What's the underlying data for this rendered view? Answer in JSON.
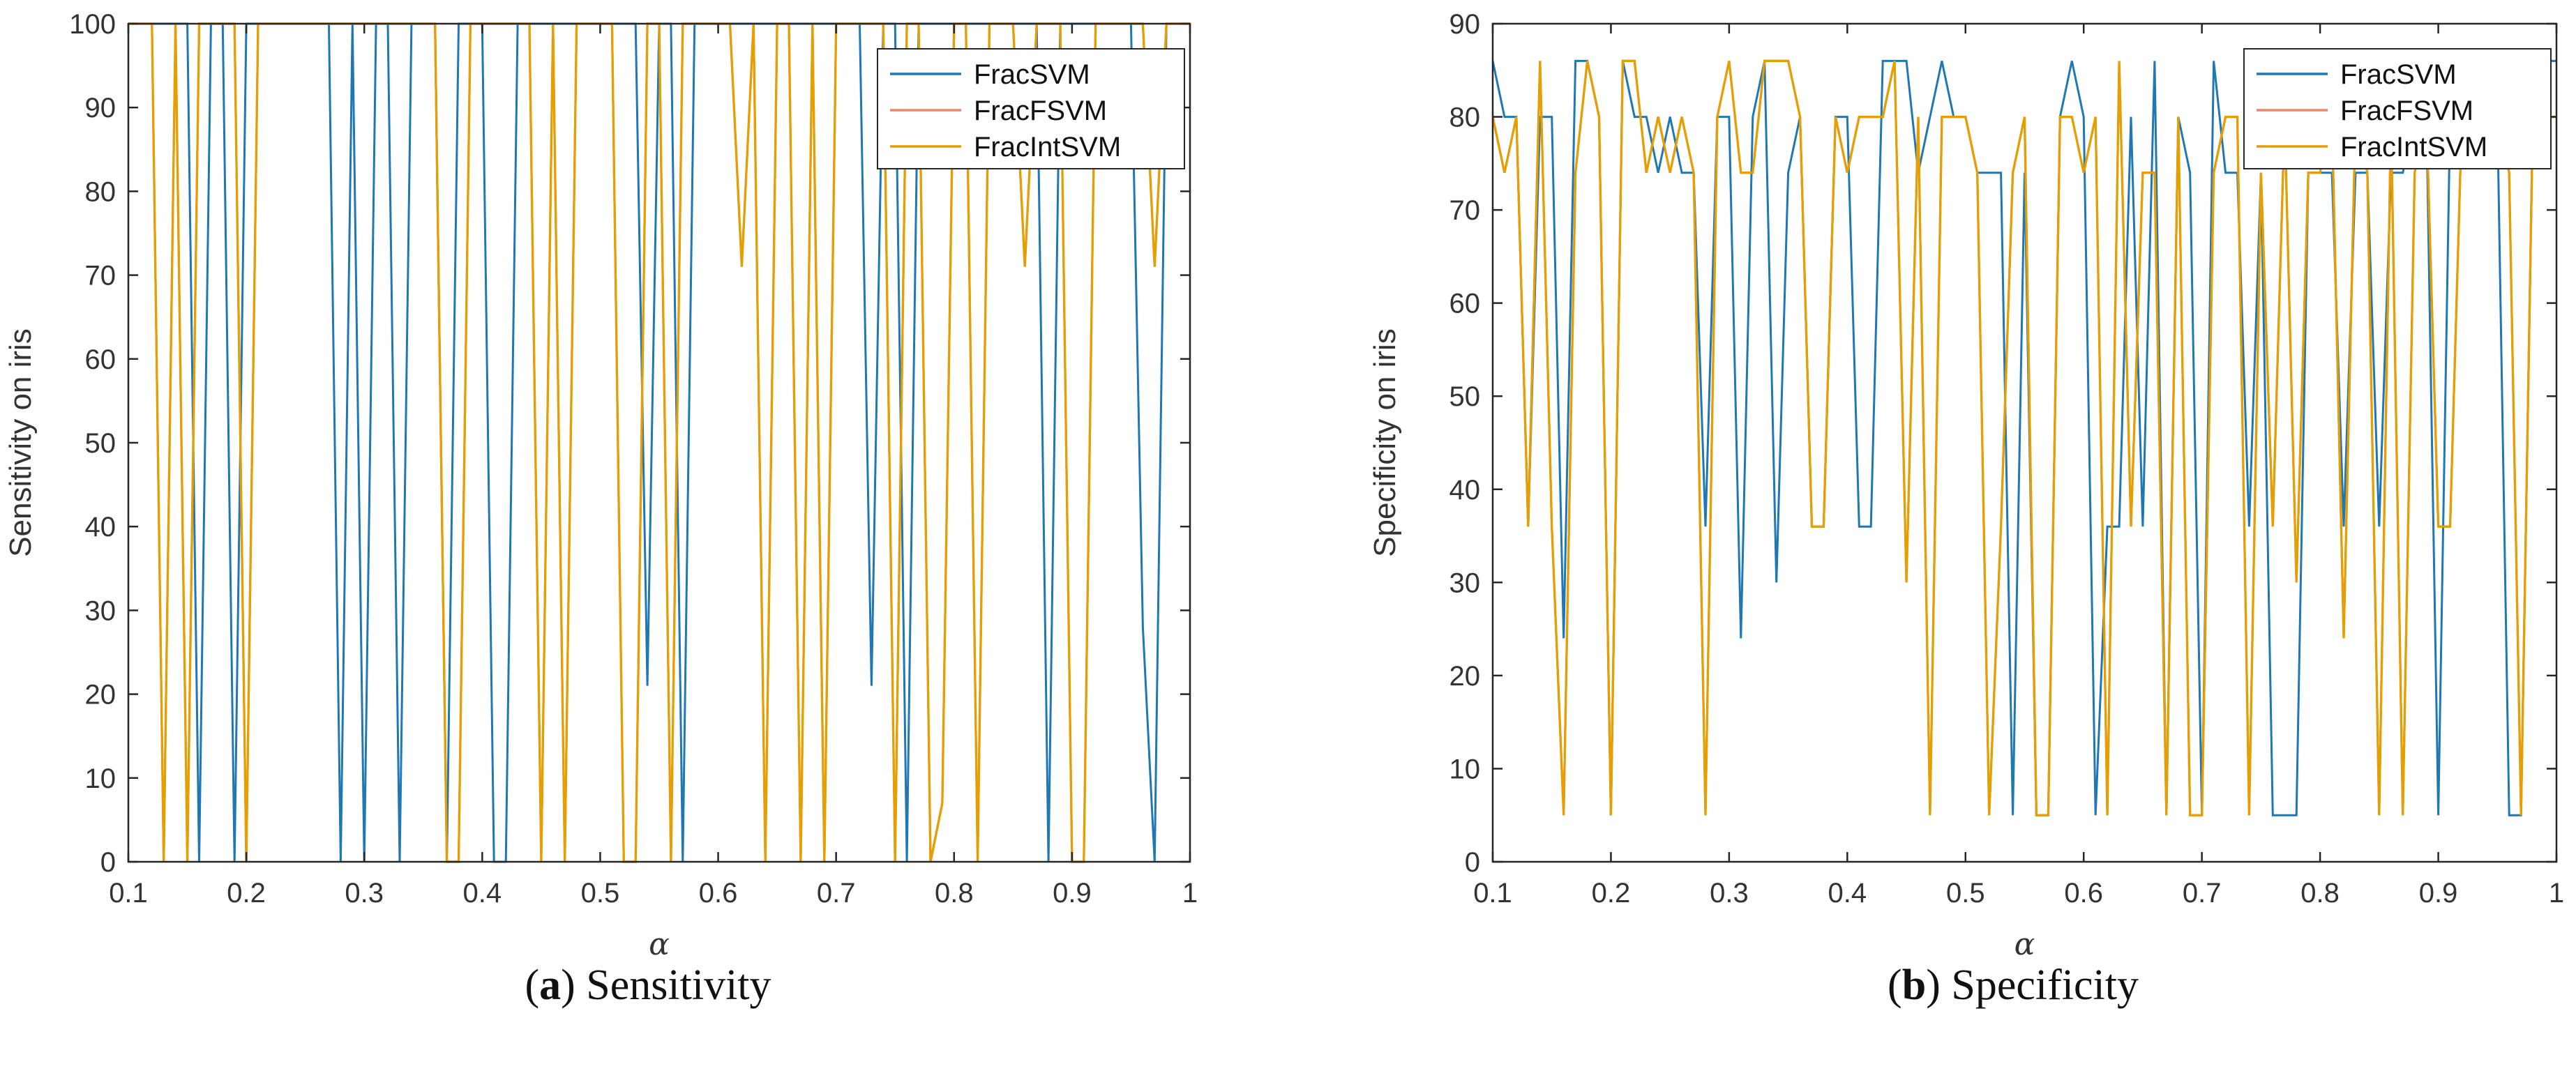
{
  "colors": {
    "FracSVM": "#1f77b4",
    "FracFSVM": "#e8856a",
    "FracIntSVM": "#e69f00",
    "axis": "#262626",
    "tick_text": "#333333"
  },
  "chart_data": [
    {
      "type": "line",
      "panel": "a",
      "caption_tag": "a",
      "caption_text": "Sensitivity",
      "xlabel": "α",
      "ylabel": "Sensitivity on iris",
      "title": "",
      "xlim": [
        0.1,
        1
      ],
      "ylim": [
        0,
        100
      ],
      "xticks": [
        0.1,
        0.2,
        0.3,
        0.4,
        0.5,
        0.6,
        0.7,
        0.8,
        0.9,
        1
      ],
      "xtick_labels": [
        "0.1",
        "0.2",
        "0.3",
        "0.4",
        "0.5",
        "0.6",
        "0.7",
        "0.8",
        "0.9",
        "1"
      ],
      "yticks": [
        0,
        10,
        20,
        30,
        40,
        50,
        60,
        70,
        80,
        90,
        100
      ],
      "ytick_labels": [
        "0",
        "10",
        "20",
        "30",
        "40",
        "50",
        "60",
        "70",
        "80",
        "90",
        "100"
      ],
      "legend_position": "top-right",
      "legend": [
        "FracSVM",
        "FracFSVM",
        "FracIntSVM"
      ],
      "x": [
        0.1,
        0.11,
        0.12,
        0.13,
        0.14,
        0.15,
        0.16,
        0.17,
        0.18,
        0.19,
        0.2,
        0.21,
        0.22,
        0.23,
        0.24,
        0.25,
        0.26,
        0.27,
        0.28,
        0.29,
        0.3,
        0.31,
        0.32,
        0.33,
        0.34,
        0.35,
        0.36,
        0.37,
        0.38,
        0.39,
        0.4,
        0.41,
        0.42,
        0.43,
        0.44,
        0.45,
        0.46,
        0.47,
        0.48,
        0.49,
        0.5,
        0.51,
        0.52,
        0.53,
        0.54,
        0.55,
        0.56,
        0.57,
        0.58,
        0.59,
        0.6,
        0.61,
        0.62,
        0.63,
        0.64,
        0.65,
        0.66,
        0.67,
        0.68,
        0.69,
        0.7,
        0.71,
        0.72,
        0.73,
        0.74,
        0.75,
        0.76,
        0.77,
        0.78,
        0.79,
        0.8,
        0.81,
        0.82,
        0.83,
        0.84,
        0.85,
        0.86,
        0.87,
        0.88,
        0.89,
        0.9,
        0.91,
        0.92,
        0.93,
        0.94,
        0.95,
        0.96,
        0.97,
        0.98,
        0.99,
        1.0
      ],
      "series": [
        {
          "name": "FracSVM",
          "values": [
            100,
            100,
            100,
            100,
            100,
            100,
            0,
            100,
            100,
            0,
            100,
            100,
            100,
            100,
            100,
            100,
            100,
            100,
            0,
            100,
            0,
            100,
            100,
            0,
            100,
            100,
            100,
            0,
            100,
            100,
            100,
            0,
            0,
            100,
            100,
            100,
            100,
            100,
            100,
            100,
            100,
            100,
            100,
            100,
            21,
            100,
            100,
            0,
            100,
            100,
            100,
            100,
            100,
            100,
            100,
            100,
            100,
            100,
            100,
            100,
            100,
            100,
            100,
            21,
            100,
            100,
            0,
            100,
            100,
            100,
            100,
            100,
            100,
            100,
            100,
            100,
            100,
            100,
            0,
            100,
            100,
            100,
            100,
            100,
            100,
            100,
            28,
            0,
            100,
            100,
            100
          ]
        },
        {
          "name": "FracFSVM",
          "values": [
            100,
            100,
            100,
            0,
            100,
            0,
            100,
            100,
            100,
            100,
            0,
            100,
            100,
            100,
            100,
            100,
            100,
            100,
            100,
            100,
            100,
            100,
            100,
            100,
            100,
            100,
            100,
            0,
            0,
            100,
            100,
            100,
            100,
            100,
            100,
            0,
            100,
            0,
            100,
            100,
            100,
            100,
            0,
            0,
            100,
            100,
            0,
            100,
            100,
            100,
            100,
            100,
            71,
            100,
            0,
            100,
            100,
            0,
            100,
            0,
            100,
            100,
            100,
            100,
            100,
            0,
            100,
            100,
            0,
            7,
            100,
            100,
            0,
            100,
            100,
            100,
            71,
            100,
            100,
            100,
            0,
            0,
            100,
            100,
            100,
            100,
            100,
            71,
            100,
            100,
            100
          ]
        },
        {
          "name": "FracIntSVM",
          "values": [
            100,
            100,
            100,
            0,
            100,
            0,
            100,
            100,
            100,
            100,
            0,
            100,
            100,
            100,
            100,
            100,
            100,
            100,
            100,
            100,
            100,
            100,
            100,
            100,
            100,
            100,
            100,
            0,
            0,
            100,
            100,
            100,
            100,
            100,
            100,
            0,
            100,
            0,
            100,
            100,
            100,
            100,
            0,
            0,
            100,
            100,
            0,
            100,
            100,
            100,
            100,
            100,
            71,
            100,
            0,
            100,
            100,
            0,
            100,
            0,
            100,
            100,
            100,
            100,
            100,
            0,
            100,
            100,
            0,
            7,
            100,
            100,
            0,
            100,
            100,
            100,
            71,
            100,
            100,
            100,
            0,
            0,
            100,
            100,
            100,
            100,
            100,
            71,
            100,
            100,
            100
          ]
        }
      ]
    },
    {
      "type": "line",
      "panel": "b",
      "caption_tag": "b",
      "caption_text": "Specificity",
      "xlabel": "α",
      "ylabel": "Specificity on iris",
      "title": "",
      "xlim": [
        0.1,
        1
      ],
      "ylim": [
        0,
        90
      ],
      "xticks": [
        0.1,
        0.2,
        0.3,
        0.4,
        0.5,
        0.6,
        0.7,
        0.8,
        0.9,
        1
      ],
      "xtick_labels": [
        "0.1",
        "0.2",
        "0.3",
        "0.4",
        "0.5",
        "0.6",
        "0.7",
        "0.8",
        "0.9",
        "1"
      ],
      "yticks": [
        0,
        10,
        20,
        30,
        40,
        50,
        60,
        70,
        80,
        90
      ],
      "ytick_labels": [
        "0",
        "10",
        "20",
        "30",
        "40",
        "50",
        "60",
        "70",
        "80",
        "90"
      ],
      "legend_position": "top-right",
      "legend": [
        "FracSVM",
        "FracFSVM",
        "FracIntSVM"
      ],
      "x": [
        0.1,
        0.11,
        0.12,
        0.13,
        0.14,
        0.15,
        0.16,
        0.17,
        0.18,
        0.19,
        0.2,
        0.21,
        0.22,
        0.23,
        0.24,
        0.25,
        0.26,
        0.27,
        0.28,
        0.29,
        0.3,
        0.31,
        0.32,
        0.33,
        0.34,
        0.35,
        0.36,
        0.37,
        0.38,
        0.39,
        0.4,
        0.41,
        0.42,
        0.43,
        0.44,
        0.45,
        0.46,
        0.47,
        0.48,
        0.49,
        0.5,
        0.51,
        0.52,
        0.53,
        0.54,
        0.55,
        0.56,
        0.57,
        0.58,
        0.59,
        0.6,
        0.61,
        0.62,
        0.63,
        0.64,
        0.65,
        0.66,
        0.67,
        0.68,
        0.69,
        0.7,
        0.71,
        0.72,
        0.73,
        0.74,
        0.75,
        0.76,
        0.77,
        0.78,
        0.79,
        0.8,
        0.81,
        0.82,
        0.83,
        0.84,
        0.85,
        0.86,
        0.87,
        0.88,
        0.89,
        0.9,
        0.91,
        0.92,
        0.93,
        0.94,
        0.95,
        0.96,
        0.97,
        0.98,
        0.99,
        1.0
      ],
      "series": [
        {
          "name": "FracSVM",
          "values": [
            86,
            80,
            80,
            36,
            80,
            80,
            24,
            86,
            86,
            80,
            5,
            86,
            80,
            80,
            74,
            80,
            74,
            74,
            36,
            80,
            80,
            24,
            80,
            86,
            30,
            74,
            80,
            36,
            36,
            80,
            80,
            36,
            36,
            86,
            86,
            86,
            74,
            80,
            86,
            80,
            80,
            74,
            74,
            74,
            5,
            74,
            5,
            5,
            80,
            86,
            80,
            5,
            36,
            36,
            80,
            36,
            86,
            5,
            80,
            74,
            5,
            86,
            74,
            74,
            36,
            74,
            5,
            5,
            5,
            74,
            74,
            74,
            36,
            74,
            74,
            36,
            74,
            74,
            80,
            80,
            5,
            80,
            80,
            80,
            80,
            80,
            5,
            5,
            80,
            86,
            86
          ]
        },
        {
          "name": "FracFSVM",
          "values": [
            80,
            74,
            80,
            36,
            86,
            36,
            5,
            74,
            86,
            80,
            5,
            86,
            86,
            74,
            80,
            74,
            80,
            74,
            5,
            80,
            86,
            74,
            74,
            86,
            86,
            86,
            80,
            36,
            36,
            80,
            74,
            80,
            80,
            80,
            86,
            30,
            80,
            5,
            80,
            80,
            80,
            74,
            5,
            36,
            74,
            80,
            5,
            5,
            80,
            80,
            74,
            80,
            5,
            86,
            36,
            74,
            74,
            5,
            80,
            5,
            5,
            74,
            80,
            80,
            5,
            74,
            36,
            80,
            30,
            74,
            74,
            80,
            24,
            80,
            74,
            5,
            80,
            5,
            74,
            80,
            36,
            36,
            80,
            80,
            80,
            80,
            74,
            5,
            80,
            80,
            80
          ]
        },
        {
          "name": "FracIntSVM",
          "values": [
            80,
            74,
            80,
            36,
            86,
            36,
            5,
            74,
            86,
            80,
            5,
            86,
            86,
            74,
            80,
            74,
            80,
            74,
            5,
            80,
            86,
            74,
            74,
            86,
            86,
            86,
            80,
            36,
            36,
            80,
            74,
            80,
            80,
            80,
            86,
            30,
            80,
            5,
            80,
            80,
            80,
            74,
            5,
            36,
            74,
            80,
            5,
            5,
            80,
            80,
            74,
            80,
            5,
            86,
            36,
            74,
            74,
            5,
            80,
            5,
            5,
            74,
            80,
            80,
            5,
            74,
            36,
            80,
            30,
            74,
            74,
            80,
            24,
            80,
            74,
            5,
            80,
            5,
            74,
            80,
            36,
            36,
            80,
            80,
            80,
            80,
            74,
            5,
            80,
            80,
            80
          ]
        }
      ]
    }
  ]
}
